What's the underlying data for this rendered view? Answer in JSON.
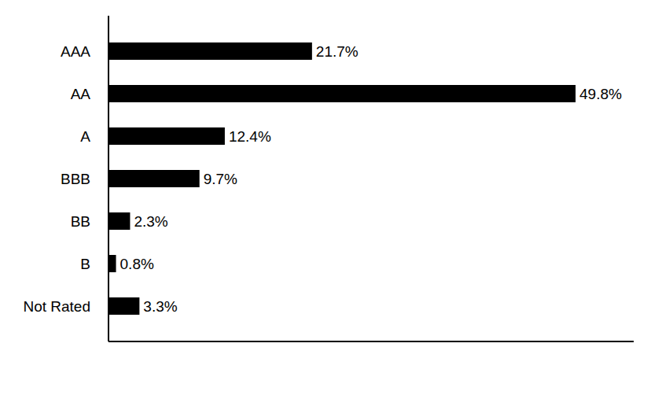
{
  "chart_data": {
    "type": "bar",
    "orientation": "horizontal",
    "categories": [
      "AAA",
      "AA",
      "A",
      "BBB",
      "BB",
      "B",
      "Not Rated"
    ],
    "values": [
      21.7,
      49.8,
      12.4,
      9.7,
      2.3,
      0.8,
      3.3
    ],
    "value_labels": [
      "21.7%",
      "49.8%",
      "12.4%",
      "9.7%",
      "2.3%",
      "0.8%",
      "3.3%"
    ],
    "color": "#000000",
    "xlim": [
      0,
      56
    ],
    "grid": false,
    "data_labels": true,
    "tick_labels": "y"
  }
}
